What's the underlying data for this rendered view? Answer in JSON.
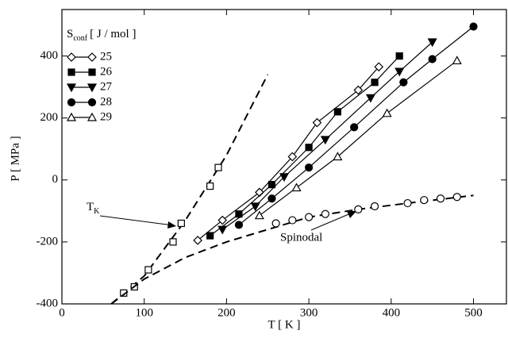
{
  "chart_data": {
    "type": "line",
    "x_label": "T [ K ]",
    "y_label": "P [ MPa ]",
    "xlim": [
      0,
      540
    ],
    "xticks": [
      0,
      100,
      200,
      300,
      400,
      500
    ],
    "ylim": [
      -400,
      550
    ],
    "yticks": [
      -400,
      -200,
      0,
      200,
      400
    ],
    "legend_title": "S",
    "legend_title_sub": "conf",
    "legend_title_unit": "[ J / mol ]",
    "legend_position": "upper left",
    "series": [
      {
        "name": "25",
        "color": "#000000",
        "marker": "diamond",
        "filled": false,
        "x": [
          165,
          195,
          240,
          280,
          310,
          360,
          385
        ],
        "values": [
          -195,
          -130,
          -40,
          75,
          185,
          290,
          365
        ]
      },
      {
        "name": "26",
        "color": "#000000",
        "marker": "square",
        "filled": true,
        "x": [
          180,
          215,
          255,
          300,
          335,
          380,
          410
        ],
        "values": [
          -180,
          -110,
          -15,
          105,
          220,
          315,
          400
        ]
      },
      {
        "name": "27",
        "color": "#000000",
        "marker": "triangle-down",
        "filled": true,
        "x": [
          195,
          235,
          270,
          320,
          375,
          410,
          450
        ],
        "values": [
          -160,
          -85,
          10,
          130,
          265,
          350,
          445
        ]
      },
      {
        "name": "28",
        "color": "#000000",
        "marker": "circle",
        "filled": true,
        "x": [
          215,
          255,
          300,
          355,
          415,
          450,
          500
        ],
        "values": [
          -145,
          -60,
          40,
          170,
          315,
          390,
          495
        ]
      },
      {
        "name": "29",
        "color": "#000000",
        "marker": "triangle-up",
        "filled": false,
        "x": [
          240,
          285,
          335,
          395,
          480
        ],
        "values": [
          -115,
          -25,
          75,
          215,
          385
        ]
      }
    ],
    "tk": {
      "label": "T",
      "label_sub": "K",
      "marker": "square",
      "x": [
        75,
        88,
        105,
        135,
        145,
        180,
        190
      ],
      "values": [
        -365,
        -345,
        -290,
        -200,
        -140,
        -20,
        40
      ],
      "curve_x": [
        60,
        100,
        150,
        200,
        250
      ],
      "curve_values": [
        -400,
        -310,
        -130,
        80,
        340
      ]
    },
    "spinodal": {
      "label": "Spinodal",
      "marker": "circle",
      "x": [
        260,
        280,
        300,
        320,
        360,
        380,
        420,
        440,
        460,
        480
      ],
      "values": [
        -140,
        -130,
        -120,
        -110,
        -95,
        -85,
        -75,
        -65,
        -60,
        -55
      ],
      "curve_x": [
        60,
        80,
        100,
        150,
        200,
        250,
        300,
        360,
        420,
        500
      ],
      "curve_values": [
        -400,
        -360,
        -320,
        -250,
        -200,
        -160,
        -120,
        -95,
        -75,
        -50
      ]
    }
  }
}
